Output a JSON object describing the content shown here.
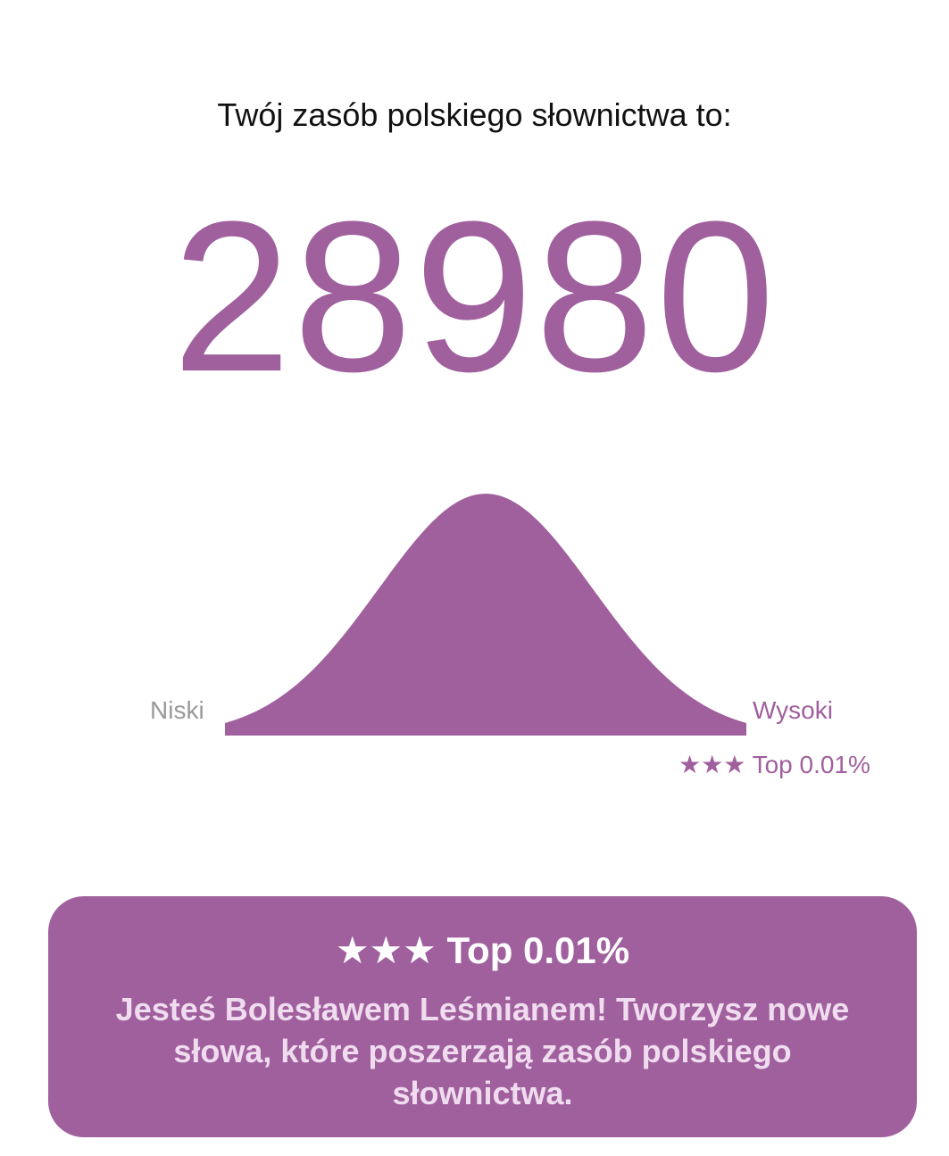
{
  "header": {
    "title": "Twój zasób polskiego słownictwa to:"
  },
  "score": {
    "value": "28980"
  },
  "distribution": {
    "low_label": "Niski",
    "high_label": "Wysoki",
    "rank_label": "★★★ Top 0.01%",
    "color": "#a0609e"
  },
  "result_card": {
    "title": "★★★ Top 0.01%",
    "text": "Jesteś Bolesławem Leśmianem! Tworzysz nowe słowa, które poszerzają zasób polskiego słownictwa.",
    "background": "#a0609e"
  }
}
